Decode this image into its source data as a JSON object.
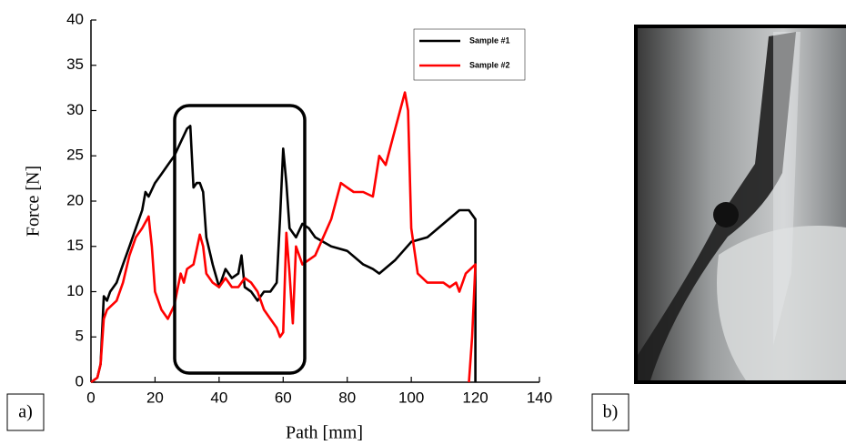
{
  "chart_data": {
    "type": "line",
    "xlabel": "Path [mm]",
    "ylabel": "Force [N]",
    "xlim": [
      0,
      140
    ],
    "xticks": [
      0,
      20,
      40,
      60,
      80,
      100,
      120,
      140
    ],
    "ylim": [
      0,
      40
    ],
    "yticks": [
      0,
      5,
      10,
      15,
      20,
      25,
      30,
      35,
      40
    ],
    "legend": "upper right",
    "series": [
      {
        "name": "Sample #1",
        "color": "#000000",
        "x": [
          0,
          2,
          3,
          4,
          5,
          6,
          8,
          10,
          12,
          14,
          16,
          17,
          18,
          20,
          22,
          24,
          26,
          28,
          30,
          31,
          32,
          33,
          34,
          35,
          36,
          38,
          40,
          42,
          44,
          46,
          47,
          48,
          50,
          52,
          54,
          56,
          58,
          59,
          60,
          61,
          62,
          64,
          66,
          68,
          70,
          75,
          80,
          85,
          88,
          90,
          95,
          100,
          105,
          110,
          115,
          118,
          120,
          120
        ],
        "values": [
          0,
          0.5,
          2,
          9.5,
          9,
          10,
          11,
          13,
          15,
          17,
          19,
          21,
          20.5,
          22,
          23,
          24,
          25,
          26.5,
          28,
          28.3,
          21.5,
          22,
          22,
          21,
          16,
          13,
          10.5,
          12.5,
          11.5,
          12,
          14,
          10.5,
          10,
          9,
          10,
          10,
          11,
          18,
          25.8,
          22,
          17,
          16,
          17.5,
          17,
          16,
          15,
          14.5,
          13,
          12.5,
          12,
          13.5,
          15.5,
          16,
          17.5,
          19,
          19,
          18,
          0
        ]
      },
      {
        "name": "Sample #2",
        "color": "#ff0000",
        "x": [
          0,
          2,
          3,
          4,
          5,
          8,
          10,
          12,
          14,
          16,
          18,
          19,
          20,
          22,
          24,
          26,
          28,
          29,
          30,
          32,
          34,
          35,
          36,
          38,
          40,
          42,
          44,
          46,
          48,
          50,
          52,
          54,
          56,
          58,
          59,
          60,
          61,
          62,
          63,
          64,
          66,
          70,
          75,
          78,
          80,
          82,
          85,
          88,
          90,
          92,
          95,
          98,
          99,
          100,
          102,
          105,
          110,
          112,
          114,
          115,
          117,
          120,
          119,
          118
        ],
        "values": [
          0,
          0.5,
          2,
          7,
          8,
          9,
          11,
          14,
          16,
          17,
          18.3,
          15,
          10,
          8,
          7,
          8.5,
          12,
          11,
          12.5,
          13,
          16.3,
          15,
          12,
          11,
          10.5,
          11.5,
          10.5,
          10.5,
          11.5,
          11,
          10,
          8,
          7,
          6,
          5,
          5.5,
          16.5,
          12,
          6.5,
          15,
          13,
          14,
          18,
          22,
          21.5,
          21,
          21,
          20.5,
          25,
          24,
          28,
          32,
          30,
          17,
          12,
          11,
          11,
          10.5,
          11,
          10,
          12,
          13,
          5,
          0
        ]
      }
    ]
  },
  "panels": {
    "a": "a)",
    "b": "b)"
  }
}
